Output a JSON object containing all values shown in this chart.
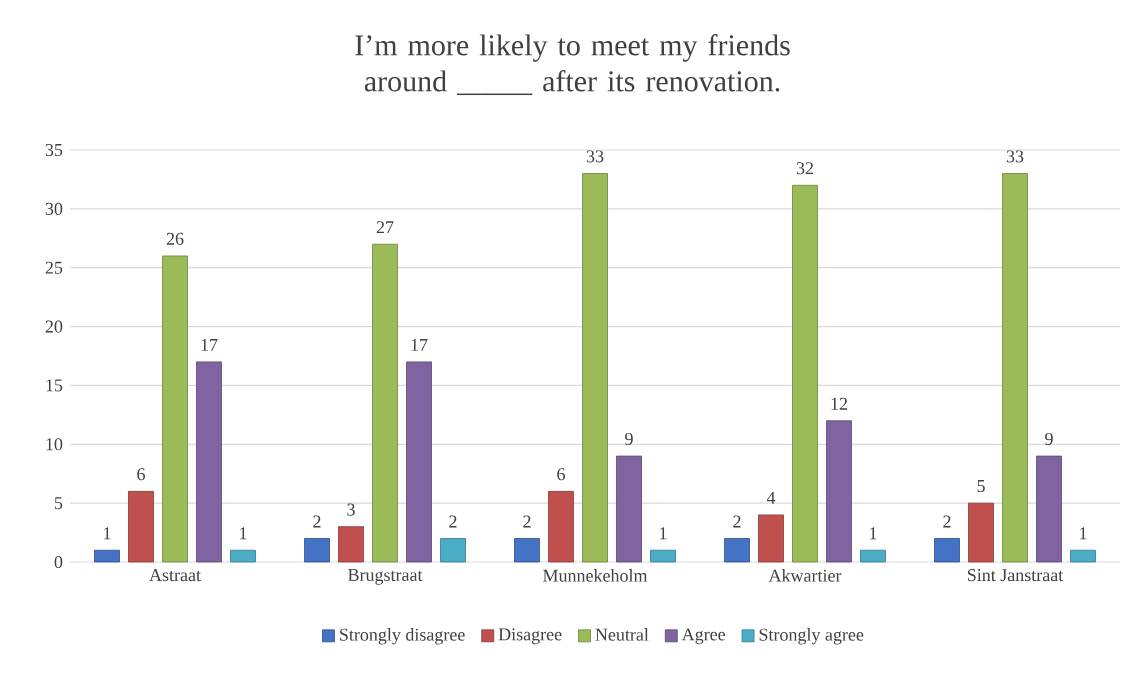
{
  "chart_data": {
    "type": "bar",
    "title": "I’m more likely to meet my friends around _____ after its renovation.",
    "categories": [
      "Astraat",
      "Brugstraat",
      "Munnekeholm",
      "Akwartier",
      "Sint Janstraat"
    ],
    "series": [
      {
        "name": "Strongly disagree",
        "color": "#4472c4",
        "values": [
          1,
          2,
          2,
          2,
          2
        ]
      },
      {
        "name": "Disagree",
        "color": "#c0504d",
        "values": [
          6,
          3,
          6,
          4,
          5
        ]
      },
      {
        "name": "Neutral",
        "color": "#9bbb59",
        "values": [
          26,
          27,
          33,
          32,
          33
        ]
      },
      {
        "name": "Agree",
        "color": "#8064a2",
        "values": [
          17,
          17,
          9,
          12,
          9
        ]
      },
      {
        "name": "Strongly agree",
        "color": "#4bacc6",
        "values": [
          1,
          2,
          1,
          1,
          1
        ]
      }
    ],
    "ylim": [
      0,
      35
    ],
    "yticks": [
      0,
      5,
      10,
      15,
      20,
      25,
      30,
      35
    ],
    "grid": "y",
    "legend": "bottom",
    "data_labels": true
  }
}
